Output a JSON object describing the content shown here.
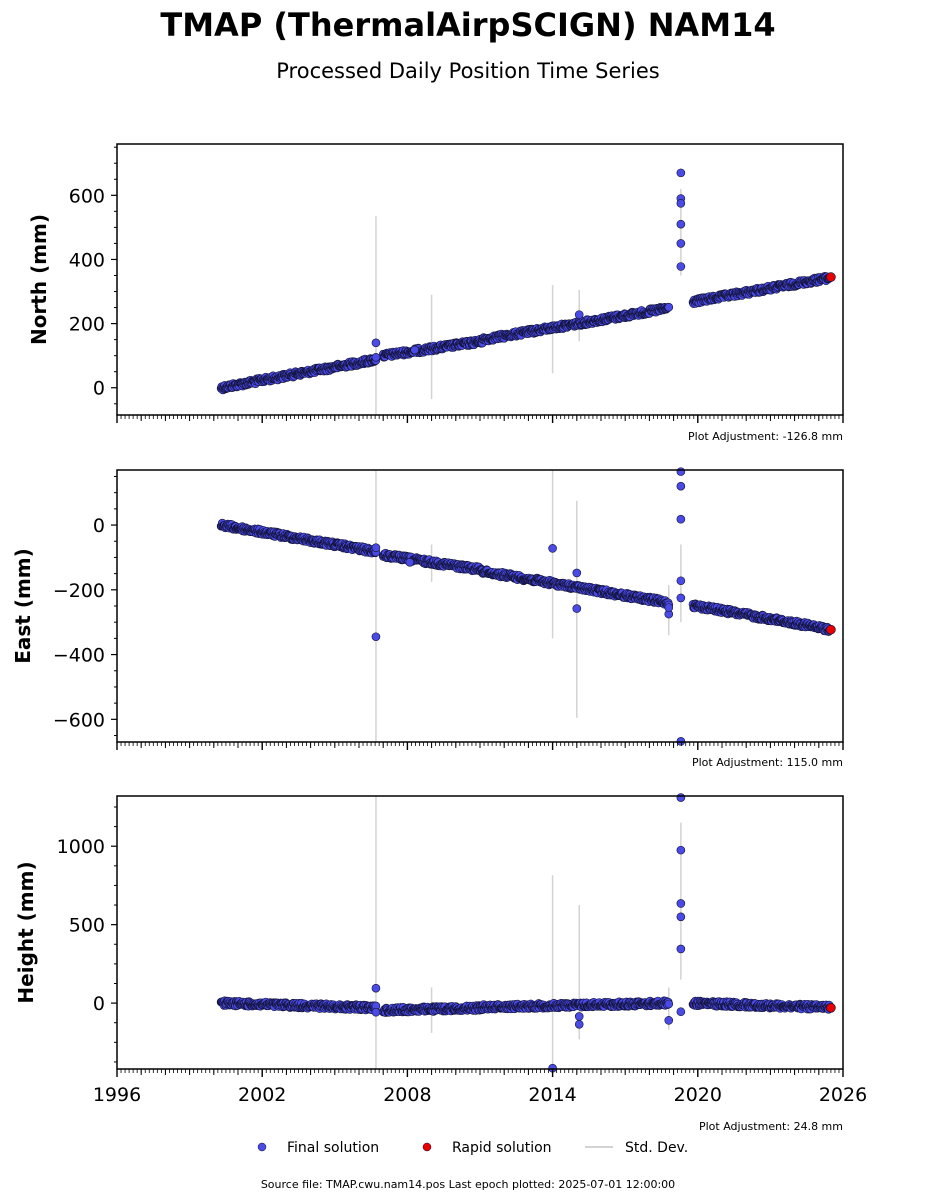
{
  "title": "TMAP (ThermalAirpSCIGN) NAM14",
  "subtitle": "Processed Daily Position Time Series",
  "footer": "Source file: TMAP.cwu.nam14.pos  Last epoch plotted: 2025-07-01 12:00:00",
  "legend": {
    "final_label": "Final solution",
    "rapid_label": "Rapid solution",
    "std_label": "Std. Dev."
  },
  "colors": {
    "final_fill": "#4a4ae6",
    "final_edge": "#111133",
    "rapid_fill": "#e60000",
    "std_line": "#d3d3d3",
    "axis": "#000000"
  },
  "chart_data": [
    {
      "type": "scatter",
      "ylabel": "North (mm)",
      "adjustment_text": "Plot Adjustment: -126.8 mm",
      "xlim": [
        1996,
        2026
      ],
      "ylim": [
        -85,
        760
      ],
      "yticks": [
        0,
        200,
        400,
        600
      ],
      "trend": [
        {
          "x0": 2000.3,
          "x1": 2006.7,
          "y0": 0,
          "y1": 88
        },
        {
          "x0": 2007.0,
          "x1": 2011.1,
          "y0": 100,
          "y1": 145
        },
        {
          "x0": 2011.1,
          "x1": 2018.8,
          "y0": 150,
          "y1": 248
        },
        {
          "x0": 2019.8,
          "x1": 2025.45,
          "y0": 268,
          "y1": 343
        }
      ],
      "outliers": [
        {
          "x": 2006.7,
          "y": 140
        },
        {
          "x": 2006.7,
          "y": 95
        },
        {
          "x": 2008.3,
          "y": 118
        },
        {
          "x": 2015.1,
          "y": 228
        },
        {
          "x": 2019.3,
          "y": 670
        },
        {
          "x": 2019.3,
          "y": 590
        },
        {
          "x": 2019.3,
          "y": 575
        },
        {
          "x": 2019.3,
          "y": 510
        },
        {
          "x": 2019.3,
          "y": 450
        },
        {
          "x": 2019.3,
          "y": 378
        }
      ],
      "errorbars": [
        {
          "x": 2006.7,
          "y0": -85,
          "y1": 535
        },
        {
          "x": 2009.0,
          "y0": -35,
          "y1": 290
        },
        {
          "x": 2014.0,
          "y0": 45,
          "y1": 320
        },
        {
          "x": 2015.1,
          "y0": 145,
          "y1": 305
        },
        {
          "x": 2019.3,
          "y0": 350,
          "y1": 620
        }
      ],
      "rapid": [
        {
          "x": 2025.5,
          "y": 345
        }
      ]
    },
    {
      "type": "scatter",
      "ylabel": "East (mm)",
      "adjustment_text": "Plot Adjustment: 115.0 mm",
      "xlim": [
        1996,
        2026
      ],
      "ylim": [
        -670,
        170
      ],
      "yticks": [
        -600,
        -400,
        -200,
        0
      ],
      "trend": [
        {
          "x0": 2000.3,
          "x1": 2006.7,
          "y0": 0,
          "y1": -82
        },
        {
          "x0": 2007.0,
          "x1": 2011.1,
          "y0": -93,
          "y1": -138
        },
        {
          "x0": 2011.1,
          "x1": 2018.8,
          "y0": -143,
          "y1": -240
        },
        {
          "x0": 2019.8,
          "x1": 2025.45,
          "y0": -248,
          "y1": -322
        }
      ],
      "outliers": [
        {
          "x": 2006.7,
          "y": -345
        },
        {
          "x": 2006.7,
          "y": -70
        },
        {
          "x": 2008.1,
          "y": -115
        },
        {
          "x": 2014.0,
          "y": -72
        },
        {
          "x": 2015.0,
          "y": -148
        },
        {
          "x": 2015.0,
          "y": -258
        },
        {
          "x": 2018.8,
          "y": -275
        },
        {
          "x": 2018.8,
          "y": -255
        },
        {
          "x": 2019.3,
          "y": 165
        },
        {
          "x": 2019.3,
          "y": 120
        },
        {
          "x": 2019.3,
          "y": 18
        },
        {
          "x": 2019.3,
          "y": -172
        },
        {
          "x": 2019.3,
          "y": -225
        },
        {
          "x": 2019.3,
          "y": -668
        }
      ],
      "errorbars": [
        {
          "x": 2006.7,
          "y0": -670,
          "y1": 170
        },
        {
          "x": 2009.0,
          "y0": -175,
          "y1": -60
        },
        {
          "x": 2014.0,
          "y0": -350,
          "y1": 170
        },
        {
          "x": 2015.0,
          "y0": -595,
          "y1": 75
        },
        {
          "x": 2018.8,
          "y0": -340,
          "y1": -185
        },
        {
          "x": 2019.3,
          "y0": -300,
          "y1": -60
        }
      ],
      "rapid": [
        {
          "x": 2025.5,
          "y": -323
        }
      ]
    },
    {
      "type": "scatter",
      "ylabel": "Height (mm)",
      "adjustment_text": "Plot Adjustment: 24.8 mm",
      "xlim": [
        1996,
        2026
      ],
      "xticks": [
        1996,
        2002,
        2008,
        2014,
        2020,
        2026
      ],
      "ylim": [
        -420,
        1320
      ],
      "yticks": [
        0,
        500,
        1000
      ],
      "trend": [
        {
          "x0": 2000.3,
          "x1": 2006.7,
          "y0": 0,
          "y1": -30
        },
        {
          "x0": 2007.0,
          "x1": 2011.1,
          "y0": -45,
          "y1": -30
        },
        {
          "x0": 2011.1,
          "x1": 2018.8,
          "y0": -25,
          "y1": 0
        },
        {
          "x0": 2019.8,
          "x1": 2025.45,
          "y0": 0,
          "y1": -28
        }
      ],
      "outliers": [
        {
          "x": 2006.7,
          "y": 95
        },
        {
          "x": 2006.7,
          "y": -58
        },
        {
          "x": 2014.0,
          "y": -415
        },
        {
          "x": 2015.1,
          "y": -85
        },
        {
          "x": 2015.1,
          "y": -135
        },
        {
          "x": 2018.8,
          "y": -110
        },
        {
          "x": 2019.3,
          "y": 1310
        },
        {
          "x": 2019.3,
          "y": 975
        },
        {
          "x": 2019.3,
          "y": 635
        },
        {
          "x": 2019.3,
          "y": 550
        },
        {
          "x": 2019.3,
          "y": 345
        },
        {
          "x": 2019.3,
          "y": -55
        }
      ],
      "errorbars": [
        {
          "x": 2006.7,
          "y0": -420,
          "y1": 1320
        },
        {
          "x": 2009.0,
          "y0": -190,
          "y1": 100
        },
        {
          "x": 2014.0,
          "y0": -420,
          "y1": 815
        },
        {
          "x": 2015.1,
          "y0": -230,
          "y1": 625
        },
        {
          "x": 2018.8,
          "y0": -170,
          "y1": 100
        },
        {
          "x": 2019.3,
          "y0": 150,
          "y1": 1150
        }
      ],
      "rapid": [
        {
          "x": 2025.5,
          "y": -30
        }
      ]
    }
  ]
}
